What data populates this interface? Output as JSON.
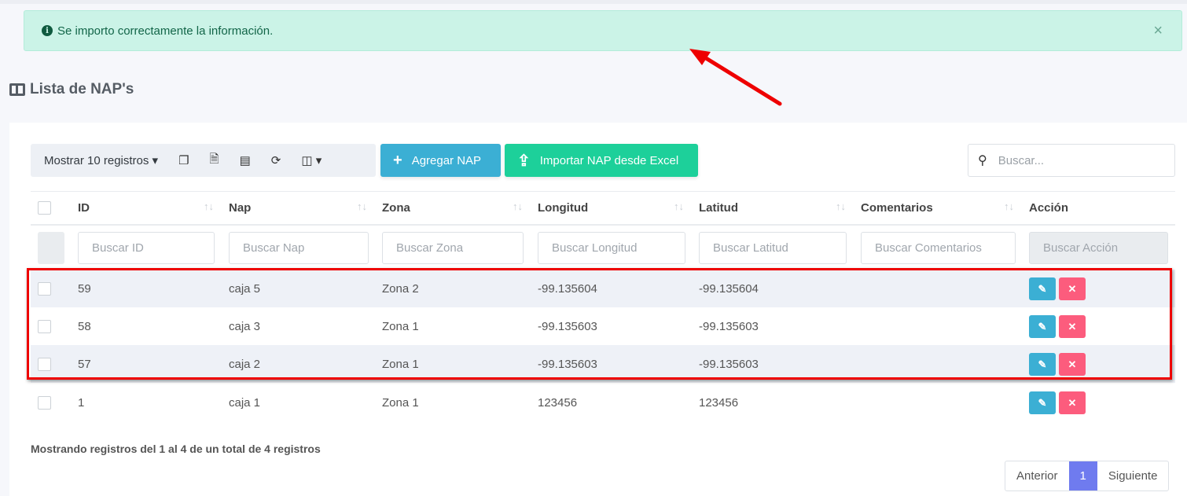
{
  "alert": {
    "icon": "info-circle-icon",
    "message": "Se importo correctamente la información.",
    "close": "×"
  },
  "page_title": "Lista de NAP's",
  "toolbar": {
    "show_records": "Mostrar 10 registros",
    "copy": "copy-icon",
    "excel": "excel-icon",
    "csv": "file-icon",
    "refresh": "refresh-icon",
    "columns": "columns-icon"
  },
  "buttons": {
    "add": "Agregar NAP",
    "import": "Importar NAP desde Excel"
  },
  "search": {
    "placeholder": "Buscar..."
  },
  "columns": [
    "ID",
    "Nap",
    "Zona",
    "Longitud",
    "Latitud",
    "Comentarios",
    "Acción"
  ],
  "filters": [
    "Buscar ID",
    "Buscar Nap",
    "Buscar Zona",
    "Buscar Longitud",
    "Buscar Latitud",
    "Buscar Comentarios",
    "Buscar Acción"
  ],
  "rows": [
    {
      "id": "59",
      "nap": "caja 5",
      "zona": "Zona 2",
      "longitud": "-99.135604",
      "latitud": "-99.135604",
      "comentarios": ""
    },
    {
      "id": "58",
      "nap": "caja 3",
      "zona": "Zona 1",
      "longitud": "-99.135603",
      "latitud": "-99.135603",
      "comentarios": ""
    },
    {
      "id": "57",
      "nap": "caja 2",
      "zona": "Zona 1",
      "longitud": "-99.135603",
      "latitud": "-99.135603",
      "comentarios": ""
    },
    {
      "id": "1",
      "nap": "caja 1",
      "zona": "Zona 1",
      "longitud": "123456",
      "latitud": "123456",
      "comentarios": ""
    }
  ],
  "footer": {
    "info": "Mostrando registros del 1 al 4 de un total de 4 registros",
    "prev": "Anterior",
    "page": "1",
    "next": "Siguiente"
  },
  "colors": {
    "alert_bg": "#cbf3e7",
    "add": "#3bafd4",
    "import": "#1dd09a",
    "delete": "#fc5c7d",
    "page_active": "#6f7bef",
    "highlight": "#ee0000"
  }
}
